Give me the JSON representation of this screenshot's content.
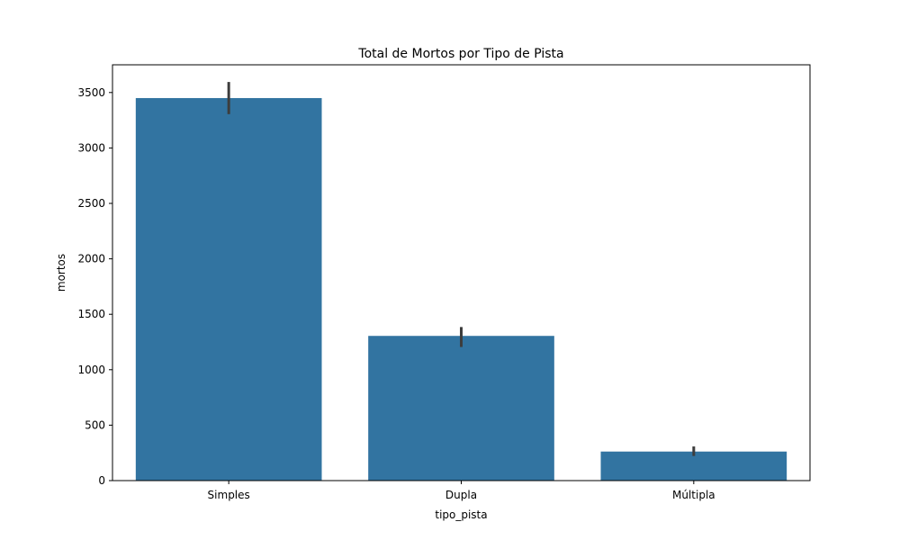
{
  "chart_data": {
    "type": "bar",
    "title": "Total de Mortos por Tipo de Pista",
    "xlabel": "tipo_pista",
    "ylabel": "mortos",
    "categories": [
      "Simples",
      "Dupla",
      "Múltipla"
    ],
    "values": [
      3450,
      1305,
      262
    ],
    "error_bars": [
      [
        3305,
        3595
      ],
      [
        1205,
        1385
      ],
      [
        222,
        308
      ]
    ],
    "ylim": [
      0,
      3750
    ],
    "yticks": [
      0,
      500,
      1000,
      1500,
      2000,
      2500,
      3000,
      3500
    ],
    "bar_color": "#3274a1",
    "error_color": "#3d3d3d",
    "grid": false
  }
}
